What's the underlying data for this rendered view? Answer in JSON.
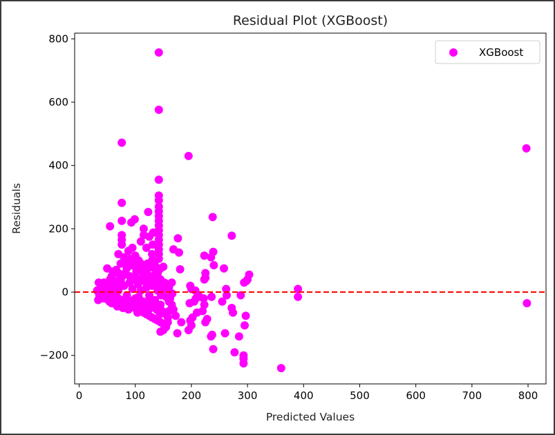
{
  "chart_data": {
    "type": "scatter",
    "title": "Residual Plot (XGBoost)",
    "xlabel": "Predicted Values",
    "ylabel": "Residuals",
    "xlim": [
      -8,
      832
    ],
    "ylim": [
      -290,
      818
    ],
    "xticks": [
      0,
      100,
      200,
      300,
      400,
      500,
      600,
      700,
      800
    ],
    "yticks": [
      -200,
      0,
      200,
      400,
      600,
      800
    ],
    "ytick_labels": [
      "−200",
      "0",
      "200",
      "400",
      "600",
      "800"
    ],
    "grid": false,
    "legend_position": "top-right",
    "reference_line": {
      "y": 0,
      "style": "dashed",
      "color": "#ff0000"
    },
    "series": [
      {
        "name": "XGBoost",
        "color": "#ff00ff",
        "points": [
          [
            142,
            757
          ],
          [
            142,
            576
          ],
          [
            76,
            472
          ],
          [
            195,
            430
          ],
          [
            797,
            454
          ],
          [
            142,
            355
          ],
          [
            142,
            305
          ],
          [
            142,
            290
          ],
          [
            142,
            270
          ],
          [
            142,
            255
          ],
          [
            142,
            240
          ],
          [
            142,
            225
          ],
          [
            142,
            210
          ],
          [
            142,
            195
          ],
          [
            142,
            180
          ],
          [
            142,
            165
          ],
          [
            142,
            150
          ],
          [
            142,
            135
          ],
          [
            142,
            120
          ],
          [
            142,
            105
          ],
          [
            76,
            282
          ],
          [
            123,
            253
          ],
          [
            99,
            230
          ],
          [
            76,
            225
          ],
          [
            55,
            208
          ],
          [
            93,
            220
          ],
          [
            238,
            237
          ],
          [
            115,
            200
          ],
          [
            76,
            180
          ],
          [
            76,
            165
          ],
          [
            76,
            150
          ],
          [
            115,
            180
          ],
          [
            110,
            160
          ],
          [
            125,
            175
          ],
          [
            132,
            188
          ],
          [
            131,
            150
          ],
          [
            176,
            170
          ],
          [
            272,
            178
          ],
          [
            130,
            120
          ],
          [
            95,
            140
          ],
          [
            88,
            130
          ],
          [
            120,
            140
          ],
          [
            130,
            100
          ],
          [
            168,
            135
          ],
          [
            178,
            125
          ],
          [
            239,
            127
          ],
          [
            235,
            110
          ],
          [
            223,
            115
          ],
          [
            240,
            85
          ],
          [
            225,
            60
          ],
          [
            225,
            45
          ],
          [
            223,
            40
          ],
          [
            258,
            75
          ],
          [
            303,
            55
          ],
          [
            298,
            35
          ],
          [
            294,
            30
          ],
          [
            95,
            100
          ],
          [
            110,
            90
          ],
          [
            100,
            80
          ],
          [
            85,
            75
          ],
          [
            120,
            70
          ],
          [
            135,
            85
          ],
          [
            150,
            80
          ],
          [
            145,
            75
          ],
          [
            50,
            75
          ],
          [
            60,
            65
          ],
          [
            70,
            60
          ],
          [
            80,
            55
          ],
          [
            90,
            50
          ],
          [
            100,
            45
          ],
          [
            110,
            40
          ],
          [
            120,
            35
          ],
          [
            130,
            30
          ],
          [
            140,
            25
          ],
          [
            150,
            20
          ],
          [
            160,
            15
          ],
          [
            180,
            72
          ],
          [
            35,
            30
          ],
          [
            40,
            20
          ],
          [
            45,
            10
          ],
          [
            50,
            5
          ],
          [
            55,
            -5
          ],
          [
            60,
            -10
          ],
          [
            65,
            -15
          ],
          [
            70,
            -20
          ],
          [
            75,
            -25
          ],
          [
            80,
            -30
          ],
          [
            85,
            -35
          ],
          [
            90,
            -40
          ],
          [
            95,
            -45
          ],
          [
            100,
            -50
          ],
          [
            105,
            -55
          ],
          [
            110,
            -60
          ],
          [
            115,
            -65
          ],
          [
            120,
            -70
          ],
          [
            125,
            -75
          ],
          [
            130,
            -80
          ],
          [
            135,
            -85
          ],
          [
            140,
            -90
          ],
          [
            145,
            -95
          ],
          [
            150,
            -100
          ],
          [
            155,
            -70
          ],
          [
            160,
            -60
          ],
          [
            165,
            -40
          ],
          [
            165,
            30
          ],
          [
            40,
            0
          ],
          [
            45,
            -20
          ],
          [
            50,
            25
          ],
          [
            55,
            40
          ],
          [
            60,
            15
          ],
          [
            65,
            35
          ],
          [
            70,
            5
          ],
          [
            75,
            45
          ],
          [
            80,
            20
          ],
          [
            85,
            -10
          ],
          [
            90,
            30
          ],
          [
            95,
            10
          ],
          [
            100,
            -20
          ],
          [
            105,
            25
          ],
          [
            110,
            5
          ],
          [
            115,
            -30
          ],
          [
            120,
            15
          ],
          [
            125,
            -10
          ],
          [
            130,
            20
          ],
          [
            135,
            -25
          ],
          [
            140,
            5
          ],
          [
            145,
            -40
          ],
          [
            150,
            10
          ],
          [
            155,
            -15
          ],
          [
            160,
            -30
          ],
          [
            70,
            120
          ],
          [
            80,
            110
          ],
          [
            90,
            105
          ],
          [
            100,
            115
          ],
          [
            105,
            70
          ],
          [
            115,
            60
          ],
          [
            125,
            50
          ],
          [
            135,
            55
          ],
          [
            140,
            60
          ],
          [
            145,
            40
          ],
          [
            38,
            -20
          ],
          [
            42,
            -5
          ],
          [
            48,
            15
          ],
          [
            52,
            -25
          ],
          [
            58,
            -35
          ],
          [
            62,
            5
          ],
          [
            68,
            -45
          ],
          [
            72,
            20
          ],
          [
            78,
            -50
          ],
          [
            82,
            60
          ],
          [
            88,
            -55
          ],
          [
            92,
            85
          ],
          [
            98,
            -40
          ],
          [
            102,
            65
          ],
          [
            108,
            -35
          ],
          [
            112,
            45
          ],
          [
            118,
            -45
          ],
          [
            122,
            55
          ],
          [
            128,
            -30
          ],
          [
            132,
            40
          ],
          [
            138,
            -55
          ],
          [
            142,
            70
          ],
          [
            148,
            -60
          ],
          [
            152,
            30
          ],
          [
            158,
            -80
          ],
          [
            162,
            -20
          ],
          [
            150,
            -120
          ],
          [
            145,
            -125
          ],
          [
            155,
            -110
          ],
          [
            158,
            -95
          ],
          [
            175,
            -130
          ],
          [
            195,
            -120
          ],
          [
            200,
            -105
          ],
          [
            202,
            -80
          ],
          [
            198,
            -90
          ],
          [
            197,
            -35
          ],
          [
            205,
            -30
          ],
          [
            208,
            -20
          ],
          [
            200,
            10
          ],
          [
            207,
            5
          ],
          [
            198,
            20
          ],
          [
            215,
            -15
          ],
          [
            222,
            -20
          ],
          [
            223,
            -40
          ],
          [
            220,
            -60
          ],
          [
            225,
            -95
          ],
          [
            228,
            -85
          ],
          [
            235,
            -140
          ],
          [
            237,
            -135
          ],
          [
            239,
            -180
          ],
          [
            236,
            -15
          ],
          [
            260,
            -130
          ],
          [
            262,
            10
          ],
          [
            263,
            -10
          ],
          [
            272,
            -50
          ],
          [
            274,
            -65
          ],
          [
            277,
            -190
          ],
          [
            285,
            -140
          ],
          [
            293,
            -200
          ],
          [
            293,
            -225
          ],
          [
            293,
            -210
          ],
          [
            295,
            -105
          ],
          [
            297,
            -75
          ],
          [
            288,
            -10
          ],
          [
            360,
            -240
          ],
          [
            390,
            10
          ],
          [
            390,
            -15
          ],
          [
            798,
            -35
          ],
          [
            300,
            40
          ],
          [
            255,
            -30
          ],
          [
            210,
            -65
          ],
          [
            182,
            -95
          ],
          [
            172,
            -75
          ],
          [
            168,
            -55
          ],
          [
            32,
            5
          ],
          [
            36,
            -10
          ],
          [
            44,
            30
          ],
          [
            48,
            -15
          ],
          [
            56,
            20
          ],
          [
            64,
            -30
          ],
          [
            74,
            35
          ],
          [
            86,
            -20
          ],
          [
            96,
            40
          ],
          [
            106,
            -15
          ],
          [
            116,
            35
          ],
          [
            126,
            -20
          ],
          [
            136,
            30
          ],
          [
            146,
            -10
          ],
          [
            156,
            25
          ],
          [
            166,
            -5
          ],
          [
            34,
            -25
          ],
          [
            54,
            -30
          ],
          [
            66,
            -40
          ],
          [
            84,
            -45
          ],
          [
            94,
            -30
          ],
          [
            104,
            -65
          ],
          [
            114,
            -50
          ],
          [
            124,
            -55
          ],
          [
            134,
            -45
          ],
          [
            144,
            -70
          ],
          [
            58,
            50
          ],
          [
            66,
            70
          ],
          [
            74,
            90
          ],
          [
            82,
            95
          ],
          [
            90,
            88
          ],
          [
            98,
            95
          ],
          [
            106,
            100
          ],
          [
            114,
            85
          ],
          [
            122,
            90
          ],
          [
            130,
            78
          ]
        ]
      }
    ]
  }
}
